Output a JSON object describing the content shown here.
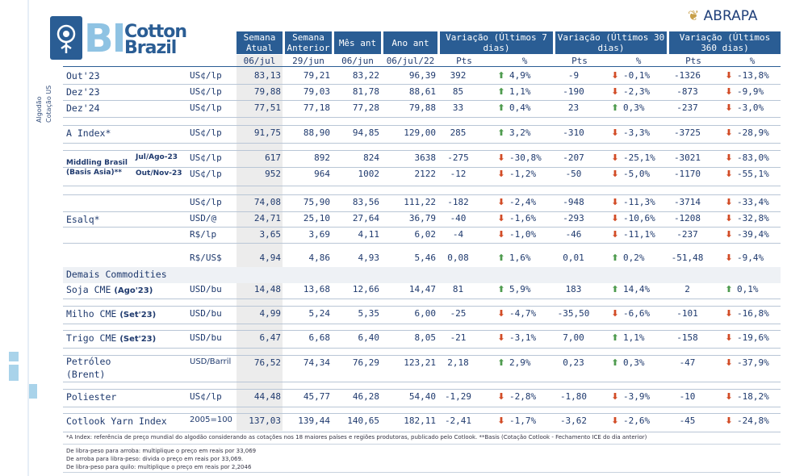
{
  "brand": {
    "bi": "BI",
    "cotton": "Cotton",
    "brazil": "Brazil",
    "partner_a": "A",
    "partner_b": "BRAPA"
  },
  "side_label": {
    "line1": "Algodão",
    "line2": "Cotação US"
  },
  "headers": {
    "semana_atual": "Semana Atual",
    "semana_anterior": "Semana Anterior",
    "mes_ant": "Mês ant",
    "ano_ant": "Ano ant",
    "var7": "Variação (Últimos 7 dias)",
    "var30": "Variação (Últimos 30 dias)",
    "var360": "Variação (Últimos 360 dias)",
    "d1": "06/jul",
    "d2": "29/jun",
    "d3": "06/jun",
    "d4": "06/jul/22",
    "pts": "Pts",
    "pct": "%"
  },
  "rows": [
    {
      "name": "Out'23",
      "unit": "US¢/lp",
      "v": [
        "83,13",
        "79,21",
        "83,22",
        "96,39"
      ],
      "p7": "392",
      "c7": "4,9%",
      "d7": "up",
      "p30": "-9",
      "c30": "-0,1%",
      "d30": "down",
      "p360": "-1326",
      "c360": "-13,8%",
      "d360": "down"
    },
    {
      "name": "Dez'23",
      "unit": "US¢/lp",
      "v": [
        "79,88",
        "79,03",
        "81,78",
        "88,61"
      ],
      "p7": "85",
      "c7": "1,1%",
      "d7": "up",
      "p30": "-190",
      "c30": "-2,3%",
      "d30": "down",
      "p360": "-873",
      "c360": "-9,9%",
      "d360": "down"
    },
    {
      "name": "Dez'24",
      "unit": "US¢/lp",
      "v": [
        "77,51",
        "77,18",
        "77,28",
        "79,88"
      ],
      "p7": "33",
      "c7": "0,4%",
      "d7": "up",
      "p30": "23",
      "c30": "0,3%",
      "d30": "up",
      "p360": "-237",
      "c360": "-3,0%",
      "d360": "down"
    },
    {
      "name": "A Index*",
      "unit": "US¢/lp",
      "v": [
        "91,75",
        "88,90",
        "94,85",
        "129,00"
      ],
      "p7": "285",
      "c7": "3,2%",
      "d7": "up",
      "p30": "-310",
      "c30": "-3,3%",
      "d30": "down",
      "p360": "-3725",
      "c360": "-28,9%",
      "d360": "down"
    },
    {
      "name": "Jul/Ago-23",
      "unit": "US¢/lp",
      "v": [
        "617",
        "892",
        "824",
        "3638"
      ],
      "p7": "-275",
      "c7": "-30,8%",
      "d7": "down",
      "p30": "-207",
      "c30": "-25,1%",
      "d30": "down",
      "p360": "-3021",
      "c360": "-83,0%",
      "d360": "down"
    },
    {
      "name": "Out/Nov-23",
      "unit": "US¢/lp",
      "v": [
        "952",
        "964",
        "1002",
        "2122"
      ],
      "p7": "-12",
      "c7": "-1,2%",
      "d7": "down",
      "p30": "-50",
      "c30": "-5,0%",
      "d30": "down",
      "p360": "-1170",
      "c360": "-55,1%",
      "d360": "down"
    },
    {
      "name": "",
      "unit": "US¢/lp",
      "v": [
        "74,08",
        "75,90",
        "83,56",
        "111,22"
      ],
      "p7": "-182",
      "c7": "-2,4%",
      "d7": "down",
      "p30": "-948",
      "c30": "-11,3%",
      "d30": "down",
      "p360": "-3714",
      "c360": "-33,4%",
      "d360": "down"
    },
    {
      "name": "Esalq*",
      "unit": "USD/@",
      "v": [
        "24,71",
        "25,10",
        "27,64",
        "36,79"
      ],
      "p7": "-40",
      "c7": "-1,6%",
      "d7": "down",
      "p30": "-293",
      "c30": "-10,6%",
      "d30": "down",
      "p360": "-1208",
      "c360": "-32,8%",
      "d360": "down"
    },
    {
      "name": "",
      "unit": "R$/lp",
      "v": [
        "3,65",
        "3,69",
        "4,11",
        "6,02"
      ],
      "p7": "-4",
      "c7": "-1,0%",
      "d7": "down",
      "p30": "-46",
      "c30": "-11,1%",
      "d30": "down",
      "p360": "-237",
      "c360": "-39,4%",
      "d360": "down"
    },
    {
      "name": "",
      "unit": "R$/US$",
      "v": [
        "4,94",
        "4,86",
        "4,93",
        "5,46"
      ],
      "p7": "0,08",
      "c7": "1,6%",
      "d7": "up",
      "p30": "0,01",
      "c30": "0,2%",
      "d30": "up",
      "p360": "-51,48",
      "c360": "-9,4%",
      "d360": "down"
    },
    {
      "name": "Soja CME",
      "suffix": "(Ago'23)",
      "unit": "USD/bu",
      "v": [
        "14,48",
        "13,68",
        "12,66",
        "14,47"
      ],
      "p7": "81",
      "c7": "5,9%",
      "d7": "up",
      "p30": "183",
      "c30": "14,4%",
      "d30": "up",
      "p360": "2",
      "c360": "0,1%",
      "d360": "up"
    },
    {
      "name": "Milho CME",
      "suffix": "(Set'23)",
      "unit": "USD/bu",
      "v": [
        "4,99",
        "5,24",
        "5,35",
        "6,00"
      ],
      "p7": "-25",
      "c7": "-4,7%",
      "d7": "down",
      "p30": "-35,50",
      "c30": "-6,6%",
      "d30": "down",
      "p360": "-101",
      "c360": "-16,8%",
      "d360": "down"
    },
    {
      "name": "Trigo CME",
      "suffix": "(Set'23)",
      "unit": "USD/bu",
      "v": [
        "6,47",
        "6,68",
        "6,40",
        "8,05"
      ],
      "p7": "-21",
      "c7": "-3,1%",
      "d7": "down",
      "p30": "7,00",
      "c30": "1,1%",
      "d30": "up",
      "p360": "-158",
      "c360": "-19,6%",
      "d360": "down"
    },
    {
      "name": "Petróleo",
      "name2": "(Brent)",
      "unit": "USD/Barril",
      "v": [
        "76,52",
        "74,34",
        "76,29",
        "123,21"
      ],
      "p7": "2,18",
      "c7": "2,9%",
      "d7": "up",
      "p30": "0,23",
      "c30": "0,3%",
      "d30": "up",
      "p360": "-47",
      "c360": "-37,9%",
      "d360": "down"
    },
    {
      "name": "Poliester",
      "unit": "US¢/lp",
      "v": [
        "44,48",
        "45,77",
        "46,28",
        "54,40"
      ],
      "p7": "-1,29",
      "c7": "-2,8%",
      "d7": "down",
      "p30": "-1,80",
      "c30": "-3,9%",
      "d30": "down",
      "p360": "-10",
      "c360": "-18,2%",
      "d360": "down"
    },
    {
      "name": "Cotlook Yarn Index",
      "unit": "2005=100",
      "v": [
        "137,03",
        "139,44",
        "140,65",
        "182,11"
      ],
      "p7": "-2,41",
      "c7": "-1,7%",
      "d7": "down",
      "p30": "-3,62",
      "c30": "-2,6%",
      "d30": "down",
      "p360": "-45",
      "c360": "-24,8%",
      "d360": "down"
    }
  ],
  "middling_label": {
    "line1": "Middling Brasil",
    "line2": "(Basis Asia)**"
  },
  "section_demais": "Demais Commodities",
  "footnotes": [
    "*A Index: referência de preço mundial do algodão considerando as cotações nos 18 maiores países e regiões produtoras, publicado pelo Cotlook. **Basis (Cotação Cotlook - Fechamento ICE do dia anterior)",
    "De libra-peso para arroba: multiplique o preço em reais por 33,069",
    "De arroba para libra-peso: divida o preço em reais por 33,069.",
    "De libra-peso para quilo: multiplique o preço em reais por 2,2046"
  ]
}
